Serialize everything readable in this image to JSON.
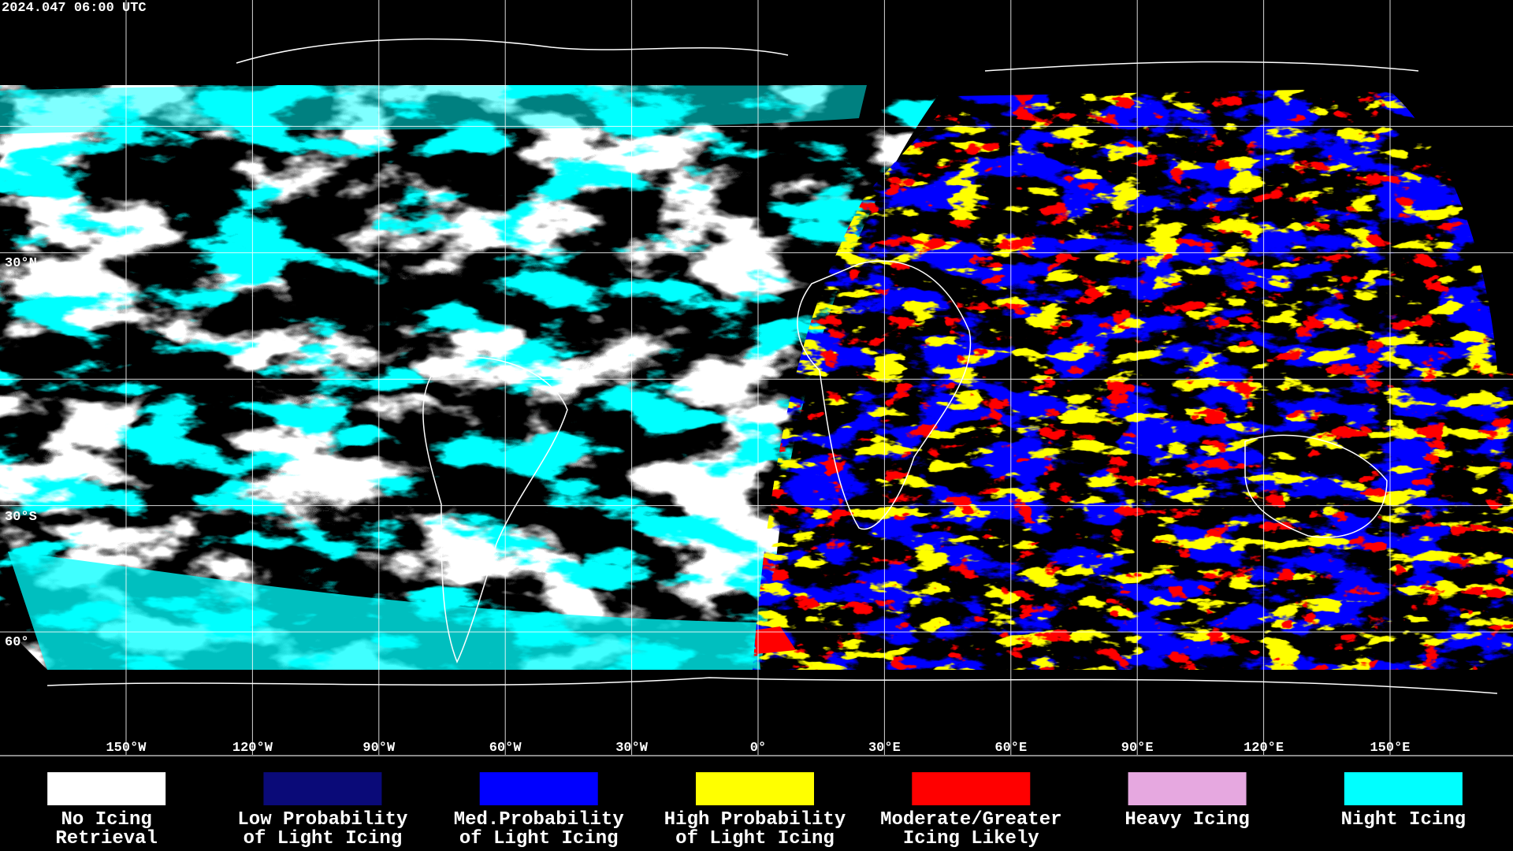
{
  "header": {
    "timestamp": "2024.047 06:00 UTC"
  },
  "map": {
    "latitude_labels": [
      "30°N",
      "30°S",
      "60°"
    ],
    "longitude_labels": [
      "150°W",
      "120°W",
      "90°W",
      "60°W",
      "30°W",
      "0°",
      "30°E",
      "60°E",
      "90°E",
      "120°E",
      "150°E"
    ]
  },
  "legend": [
    {
      "color": "#ffffff",
      "lines": [
        "No Icing",
        "Retrieval"
      ]
    },
    {
      "color": "#0a0a78",
      "lines": [
        "Low Probability",
        "of Light Icing"
      ]
    },
    {
      "color": "#0000ff",
      "lines": [
        "Med.Probability",
        "of Light Icing"
      ]
    },
    {
      "color": "#ffff00",
      "lines": [
        "High Probability",
        "of Light Icing"
      ]
    },
    {
      "color": "#ff0000",
      "lines": [
        "Moderate/Greater",
        "Icing Likely"
      ]
    },
    {
      "color": "#e6a8e0",
      "lines": [
        "Heavy Icing"
      ]
    },
    {
      "color": "#00ffff",
      "lines": [
        "Night Icing"
      ]
    }
  ]
}
